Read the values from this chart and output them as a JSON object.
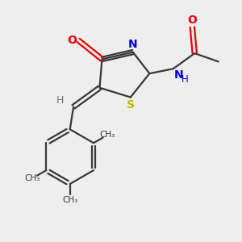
{
  "bg_color": "#eeeeee",
  "bond_color": "#383838",
  "N_color": "#0000ee",
  "O_color": "#ee0000",
  "S_color": "#bbbb00",
  "H_color": "#707070",
  "C_color": "#383838",
  "bond_lw": 1.6,
  "figsize": [
    3.0,
    3.0
  ],
  "dpi": 100,
  "xlim": [
    0,
    10
  ],
  "ylim": [
    0,
    10
  ]
}
